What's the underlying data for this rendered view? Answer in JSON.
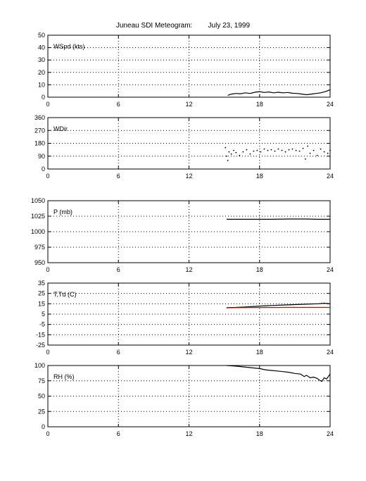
{
  "figure": {
    "title": "Juneau SDI Meteogram:        July 23, 1999"
  },
  "chart_data": [
    {
      "type": "line",
      "panel_label": "WSpd (kts)",
      "xlim": [
        0,
        24
      ],
      "xticks": [
        "0",
        "6",
        "12",
        "18",
        "24"
      ],
      "ylim": [
        0,
        50
      ],
      "yticks": [
        "50",
        "40",
        "30",
        "20",
        "10",
        "0"
      ],
      "grid": true,
      "style": "line",
      "series": [
        {
          "color": "#000000",
          "x": [
            15.3,
            15.6,
            16.0,
            16.4,
            16.8,
            17.2,
            17.6,
            18.0,
            18.4,
            18.8,
            19.2,
            19.6,
            20.0,
            20.4,
            20.8,
            21.2,
            21.6,
            22.0,
            22.4,
            22.8,
            23.2,
            23.6,
            24.0
          ],
          "y": [
            1.5,
            2.5,
            3.0,
            2.8,
            3.5,
            3.0,
            4.0,
            4.5,
            3.8,
            4.2,
            3.5,
            4.0,
            3.5,
            3.8,
            3.2,
            3.0,
            2.5,
            2.0,
            2.5,
            3.0,
            3.5,
            4.5,
            6.0
          ]
        }
      ]
    },
    {
      "type": "scatter",
      "panel_label": "WDir",
      "xlim": [
        0,
        24
      ],
      "xticks": [
        "0",
        "6",
        "12",
        "18",
        "24"
      ],
      "ylim": [
        0,
        360
      ],
      "yticks": [
        "360",
        "270",
        "180",
        "90",
        "0"
      ],
      "grid": true,
      "style": "dots",
      "series": [
        {
          "color": "#000000",
          "x": [
            15.1,
            15.2,
            15.3,
            15.4,
            15.6,
            15.8,
            16.0,
            16.3,
            16.6,
            16.9,
            17.2,
            17.5,
            17.8,
            18.1,
            18.4,
            18.7,
            19.0,
            19.3,
            19.6,
            19.9,
            20.2,
            20.5,
            20.8,
            21.1,
            21.4,
            21.7,
            21.9,
            22.1,
            22.3,
            22.6,
            22.9,
            23.2,
            23.5,
            23.8,
            24.0
          ],
          "y": [
            150,
            90,
            60,
            120,
            105,
            130,
            115,
            95,
            120,
            135,
            105,
            125,
            130,
            120,
            140,
            130,
            135,
            125,
            140,
            130,
            120,
            135,
            140,
            130,
            125,
            145,
            70,
            160,
            110,
            130,
            95,
            140,
            120,
            110,
            130
          ]
        }
      ]
    },
    {
      "type": "line",
      "panel_label": "P (mb)",
      "xlim": [
        0,
        24
      ],
      "xticks": [
        "0",
        "6",
        "12",
        "18",
        "24"
      ],
      "ylim": [
        950,
        1050
      ],
      "yticks": [
        "1050",
        "1025",
        "1000",
        "975",
        "950"
      ],
      "grid": true,
      "style": "line",
      "series": [
        {
          "color": "#000000",
          "x": [
            15.2,
            17.0,
            19.0,
            20.5,
            22.0,
            23.0,
            24.0
          ],
          "y": [
            1020,
            1020,
            1020,
            1020.5,
            1020.5,
            1020,
            1020
          ]
        }
      ]
    },
    {
      "type": "line",
      "panel_label": "T,Td (C)",
      "xlim": [
        0,
        24
      ],
      "xticks": [
        "0",
        "6",
        "12",
        "18",
        "24"
      ],
      "ylim": [
        -25,
        35
      ],
      "yticks": [
        "35",
        "25",
        "15",
        "5",
        "-5",
        "-15",
        "-25"
      ],
      "grid": true,
      "style": "line",
      "series": [
        {
          "color": "#000000",
          "x": [
            15.2,
            16.0,
            17.0,
            18.0,
            19.0,
            20.0,
            21.0,
            22.0,
            23.0,
            23.5,
            24.0
          ],
          "y": [
            11.2,
            11.5,
            12.0,
            12.8,
            13.3,
            13.8,
            14.2,
            14.6,
            15.0,
            15.6,
            15.0
          ]
        },
        {
          "color": "#cc0000",
          "x": [
            15.2,
            16.0,
            17.0,
            18.0,
            19.0,
            20.0,
            21.0,
            22.0,
            23.0,
            24.0
          ],
          "y": [
            11.0,
            11.2,
            11.3,
            11.4,
            11.4,
            11.5,
            11.5,
            11.5,
            11.5,
            11.5
          ]
        }
      ]
    },
    {
      "type": "line",
      "panel_label": "RH (%)",
      "xlim": [
        0,
        24
      ],
      "xticks": [
        "0",
        "6",
        "12",
        "18",
        "24"
      ],
      "ylim": [
        0,
        100
      ],
      "yticks": [
        "100",
        "75",
        "50",
        "25",
        "0"
      ],
      "grid": true,
      "style": "line",
      "series": [
        {
          "color": "#000000",
          "x": [
            15.2,
            16.0,
            17.0,
            18.0,
            18.5,
            19.0,
            19.5,
            20.0,
            20.5,
            21.0,
            21.5,
            21.8,
            22.0,
            22.3,
            22.6,
            22.9,
            23.1,
            23.3,
            23.5,
            23.7,
            24.0
          ],
          "y": [
            100,
            99,
            97,
            95,
            93,
            92,
            91,
            90,
            89,
            87,
            86,
            82,
            84,
            80,
            81,
            79,
            76,
            74,
            80,
            78,
            86
          ]
        }
      ]
    }
  ]
}
